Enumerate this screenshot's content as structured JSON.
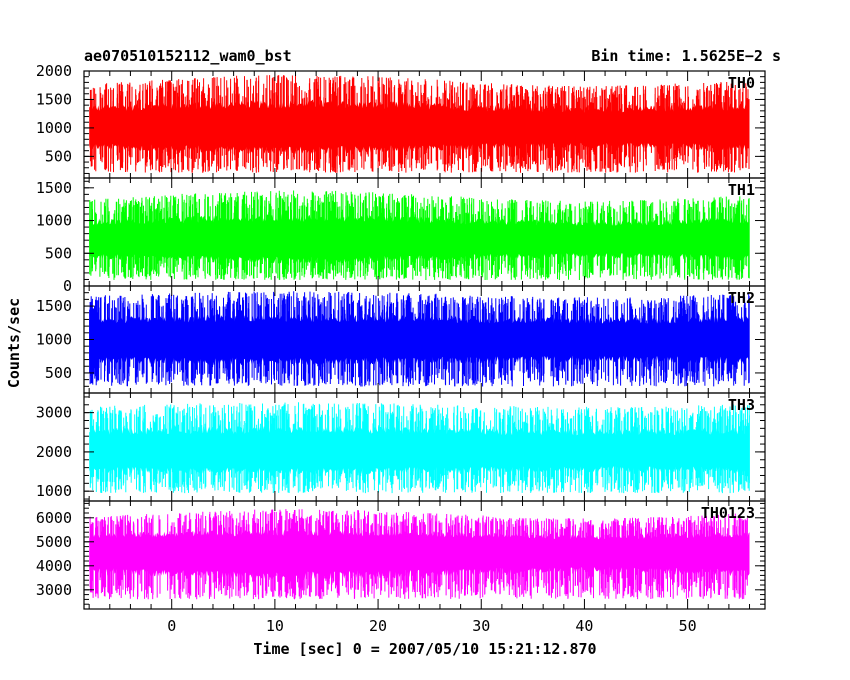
{
  "header": {
    "title": "ae070510152112_wam0_bst",
    "bin_time": "Bin time: 1.5625E−2 s"
  },
  "chart_data": {
    "type": "line",
    "title": "ae070510152112_wam0_bst",
    "xlabel": "Time [sec] 0 = 2007/05/10 15:21:12.870",
    "ylabel": "Counts/sec",
    "xlim": [
      -8.5,
      57.5
    ],
    "x_range": [
      -8,
      56
    ],
    "x_ticks": [
      0,
      10,
      20,
      30,
      40,
      50
    ],
    "panels": [
      {
        "name": "TH0",
        "color": "#ff0000",
        "ylim": [
          120,
          2000
        ],
        "y_ticks": [
          500,
          1000,
          1500,
          2000
        ],
        "mean": 1000,
        "low_env": 250,
        "high_env": 1800,
        "bump": 1
      },
      {
        "name": "TH1",
        "color": "#00ff00",
        "ylim": [
          0,
          1650
        ],
        "y_ticks": [
          0,
          500,
          1000,
          1500
        ],
        "mean": 700,
        "low_env": 120,
        "high_env": 1350,
        "bump": 1
      },
      {
        "name": "TH2",
        "color": "#0000ff",
        "ylim": [
          200,
          1800
        ],
        "y_ticks": [
          500,
          1000,
          1500
        ],
        "mean": 1000,
        "low_env": 330,
        "high_env": 1650,
        "bump": 0.5
      },
      {
        "name": "TH3",
        "color": "#00ffff",
        "ylim": [
          750,
          3500
        ],
        "y_ticks": [
          1000,
          2000,
          3000
        ],
        "mean": 2000,
        "low_env": 1000,
        "high_env": 3150,
        "bump": 0.4
      },
      {
        "name": "TH0123",
        "color": "#ff00ff",
        "ylim": [
          2200,
          6700
        ],
        "y_ticks": [
          3000,
          4000,
          5000,
          6000
        ],
        "mean": 4600,
        "low_env": 2700,
        "high_env": 6100,
        "bump": 1
      }
    ]
  }
}
